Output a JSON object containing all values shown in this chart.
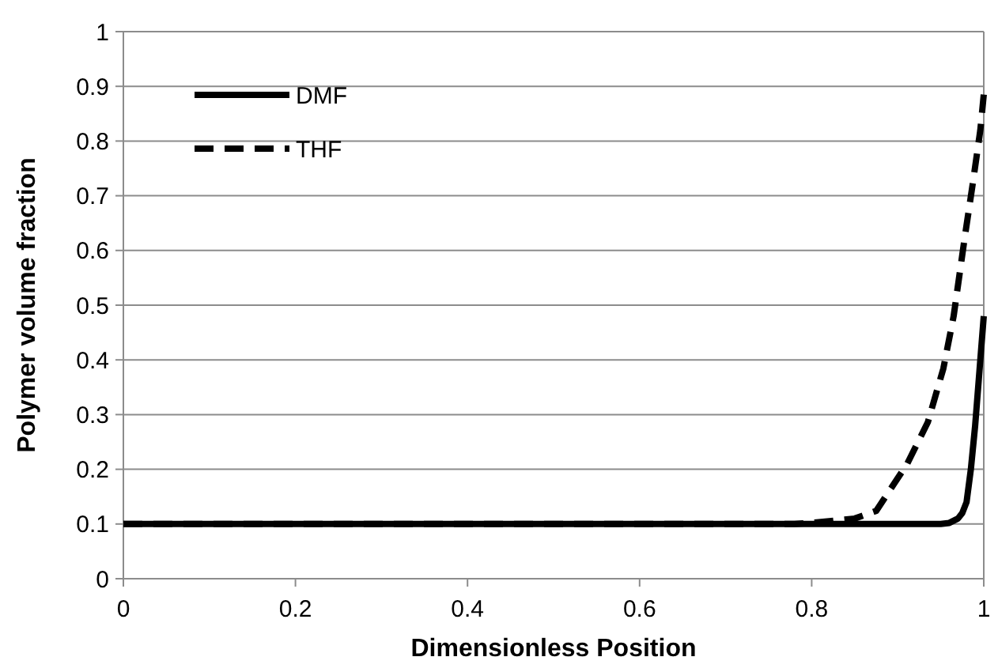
{
  "chart_data": {
    "type": "line",
    "xlabel": "Dimensionless Position",
    "ylabel": "Polymer volume fraction",
    "xlim": [
      0,
      1
    ],
    "ylim": [
      0,
      1
    ],
    "xticks": [
      0,
      0.2,
      0.4,
      0.6,
      0.8,
      1
    ],
    "yticks": [
      0,
      0.1,
      0.2,
      0.3,
      0.4,
      0.5,
      0.6,
      0.7,
      0.8,
      0.9,
      1
    ],
    "grid": "y",
    "legend": "top left",
    "marker": "none",
    "series": [
      {
        "name": "DMF",
        "color": "#000000",
        "line_style": "solid",
        "x": [
          0,
          0.5,
          0.95,
          0.96,
          0.97,
          0.975,
          0.98,
          0.985,
          0.99,
          0.995,
          1
        ],
        "values": [
          0.1,
          0.1,
          0.1,
          0.102,
          0.11,
          0.12,
          0.14,
          0.2,
          0.28,
          0.38,
          0.48
        ]
      },
      {
        "name": "THF",
        "color": "#000000",
        "line_style": "dashed",
        "x": [
          0,
          0.5,
          0.78,
          0.8,
          0.85,
          0.875,
          0.911,
          0.935,
          0.953,
          0.965,
          0.978,
          0.987,
          0.996,
          1
        ],
        "values": [
          0.1,
          0.1,
          0.1,
          0.102,
          0.11,
          0.124,
          0.21,
          0.286,
          0.384,
          0.48,
          0.625,
          0.72,
          0.82,
          0.885
        ]
      }
    ]
  }
}
